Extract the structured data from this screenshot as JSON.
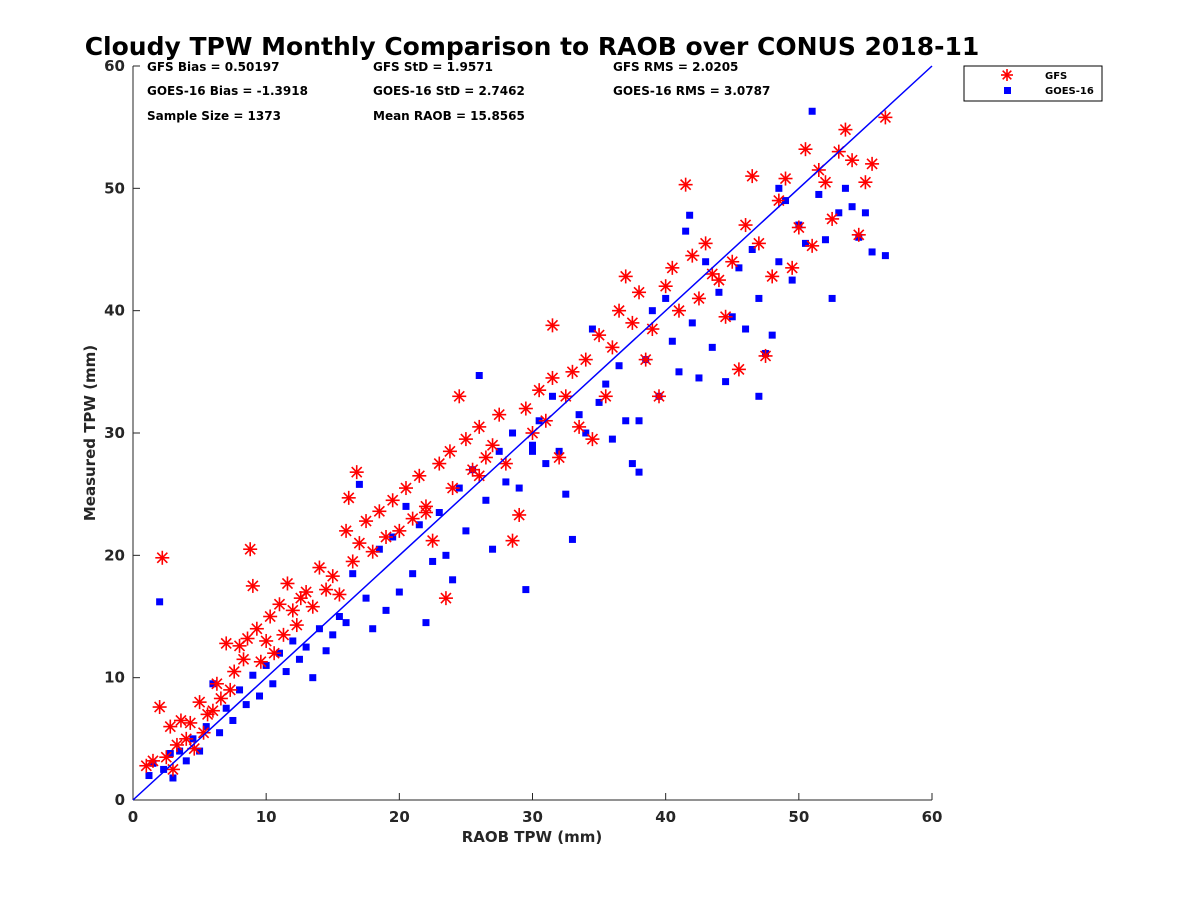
{
  "chart_data": {
    "type": "scatter",
    "title": "Cloudy TPW Monthly Comparison to RAOB over CONUS 2018-11",
    "xlabel": "RAOB TPW (mm)",
    "ylabel": "Measured TPW (mm)",
    "xlim": [
      0,
      60
    ],
    "ylim": [
      0,
      60
    ],
    "x_ticks": [
      "0",
      "10",
      "20",
      "30",
      "40",
      "50",
      "60"
    ],
    "y_ticks": [
      "0",
      "10",
      "20",
      "30",
      "40",
      "50",
      "60"
    ],
    "grid": false,
    "legend_position": "top-right-outside",
    "reference_line": "one-to-one",
    "stats": [
      [
        "GFS Bias = 0.50197",
        "GFS StD = 1.9571",
        "GFS RMS = 2.0205"
      ],
      [
        "GOES-16 Bias = -1.3918",
        "GOES-16 StD = 2.7462",
        "GOES-16 RMS = 3.0787"
      ],
      [
        "Sample Size = 1373",
        "Mean RAOB = 15.8565"
      ]
    ],
    "series": [
      {
        "name": "GFS",
        "marker": "asterisk",
        "color": "#ff0000",
        "points": [
          [
            1.0,
            2.8
          ],
          [
            1.5,
            3.2
          ],
          [
            2.0,
            7.6
          ],
          [
            2.2,
            19.8
          ],
          [
            2.5,
            3.5
          ],
          [
            2.8,
            6.0
          ],
          [
            3.0,
            2.5
          ],
          [
            3.3,
            4.5
          ],
          [
            3.6,
            6.5
          ],
          [
            4.0,
            5.0
          ],
          [
            4.3,
            6.3
          ],
          [
            4.6,
            4.2
          ],
          [
            5.0,
            8.0
          ],
          [
            5.3,
            5.5
          ],
          [
            5.6,
            7.0
          ],
          [
            6.0,
            7.3
          ],
          [
            6.3,
            9.5
          ],
          [
            6.6,
            8.3
          ],
          [
            7.0,
            12.8
          ],
          [
            7.3,
            9.0
          ],
          [
            7.6,
            10.5
          ],
          [
            8.0,
            12.6
          ],
          [
            8.3,
            11.5
          ],
          [
            8.6,
            13.2
          ],
          [
            8.8,
            20.5
          ],
          [
            9.0,
            17.5
          ],
          [
            9.3,
            14.0
          ],
          [
            9.6,
            11.3
          ],
          [
            10.0,
            13.0
          ],
          [
            10.3,
            15.0
          ],
          [
            10.6,
            12.0
          ],
          [
            11.0,
            16.0
          ],
          [
            11.3,
            13.5
          ],
          [
            11.6,
            17.7
          ],
          [
            12.0,
            15.5
          ],
          [
            12.3,
            14.3
          ],
          [
            12.6,
            16.5
          ],
          [
            13.0,
            17.0
          ],
          [
            13.5,
            15.8
          ],
          [
            14.0,
            19.0
          ],
          [
            14.5,
            17.2
          ],
          [
            15.0,
            18.3
          ],
          [
            15.5,
            16.8
          ],
          [
            16.0,
            22.0
          ],
          [
            16.2,
            24.7
          ],
          [
            16.5,
            19.5
          ],
          [
            16.8,
            26.8
          ],
          [
            17.0,
            21.0
          ],
          [
            17.5,
            22.8
          ],
          [
            18.0,
            20.3
          ],
          [
            18.5,
            23.6
          ],
          [
            19.0,
            21.5
          ],
          [
            19.5,
            24.5
          ],
          [
            20.0,
            22.0
          ],
          [
            20.5,
            25.5
          ],
          [
            21.0,
            23.0
          ],
          [
            21.5,
            26.5
          ],
          [
            22.0,
            24.0
          ],
          [
            22.5,
            21.2
          ],
          [
            23.0,
            27.5
          ],
          [
            23.5,
            16.5
          ],
          [
            23.8,
            28.5
          ],
          [
            24.0,
            25.5
          ],
          [
            24.5,
            33.0
          ],
          [
            25.0,
            29.5
          ],
          [
            25.5,
            27.0
          ],
          [
            26.0,
            30.5
          ],
          [
            26.5,
            28.0
          ],
          [
            27.0,
            29.0
          ],
          [
            27.5,
            31.5
          ],
          [
            28.0,
            27.5
          ],
          [
            28.5,
            21.2
          ],
          [
            29.0,
            23.3
          ],
          [
            29.5,
            32.0
          ],
          [
            30.0,
            30.0
          ],
          [
            30.5,
            33.5
          ],
          [
            31.0,
            31.0
          ],
          [
            31.5,
            34.5
          ],
          [
            32.0,
            28.0
          ],
          [
            32.5,
            33.0
          ],
          [
            33.0,
            35.0
          ],
          [
            33.5,
            30.5
          ],
          [
            34.0,
            36.0
          ],
          [
            34.5,
            29.5
          ],
          [
            35.0,
            38.0
          ],
          [
            35.5,
            33.0
          ],
          [
            36.0,
            37.0
          ],
          [
            36.5,
            40.0
          ],
          [
            37.0,
            42.8
          ],
          [
            37.5,
            39.0
          ],
          [
            38.0,
            41.5
          ],
          [
            38.5,
            36.0
          ],
          [
            39.0,
            38.5
          ],
          [
            39.5,
            33.0
          ],
          [
            40.0,
            42.0
          ],
          [
            40.5,
            43.5
          ],
          [
            41.0,
            40.0
          ],
          [
            41.5,
            50.3
          ],
          [
            42.0,
            44.5
          ],
          [
            42.5,
            41.0
          ],
          [
            43.0,
            45.5
          ],
          [
            43.5,
            43.0
          ],
          [
            44.0,
            42.5
          ],
          [
            44.5,
            39.5
          ],
          [
            45.0,
            44.0
          ],
          [
            45.5,
            35.2
          ],
          [
            46.0,
            47.0
          ],
          [
            46.5,
            51.0
          ],
          [
            47.0,
            45.5
          ],
          [
            47.5,
            36.3
          ],
          [
            48.0,
            42.8
          ],
          [
            48.5,
            49.0
          ],
          [
            49.0,
            50.8
          ],
          [
            49.5,
            43.5
          ],
          [
            50.0,
            46.8
          ],
          [
            50.5,
            53.2
          ],
          [
            51.0,
            45.3
          ],
          [
            51.5,
            51.5
          ],
          [
            52.0,
            50.5
          ],
          [
            52.5,
            47.5
          ],
          [
            53.0,
            53.0
          ],
          [
            53.5,
            54.8
          ],
          [
            54.0,
            52.3
          ],
          [
            54.5,
            46.2
          ],
          [
            55.0,
            50.5
          ],
          [
            55.5,
            52.0
          ],
          [
            56.5,
            55.8
          ],
          [
            31.5,
            38.8
          ],
          [
            26.0,
            26.5
          ],
          [
            22.0,
            23.5
          ]
        ]
      },
      {
        "name": "GOES-16",
        "marker": "square",
        "color": "#0000ff",
        "points": [
          [
            1.2,
            2.0
          ],
          [
            1.5,
            3.0
          ],
          [
            2.0,
            16.2
          ],
          [
            2.3,
            2.5
          ],
          [
            2.8,
            3.8
          ],
          [
            3.0,
            1.8
          ],
          [
            3.5,
            4.0
          ],
          [
            4.0,
            3.2
          ],
          [
            4.5,
            5.0
          ],
          [
            5.0,
            4.0
          ],
          [
            5.5,
            6.0
          ],
          [
            6.0,
            9.5
          ],
          [
            6.5,
            5.5
          ],
          [
            7.0,
            7.5
          ],
          [
            7.5,
            6.5
          ],
          [
            8.0,
            9.0
          ],
          [
            8.5,
            7.8
          ],
          [
            9.0,
            10.2
          ],
          [
            9.5,
            8.5
          ],
          [
            10.0,
            11.0
          ],
          [
            10.5,
            9.5
          ],
          [
            11.0,
            12.0
          ],
          [
            11.5,
            10.5
          ],
          [
            12.0,
            13.0
          ],
          [
            12.5,
            11.5
          ],
          [
            13.0,
            12.5
          ],
          [
            13.5,
            10.0
          ],
          [
            14.0,
            14.0
          ],
          [
            14.5,
            12.2
          ],
          [
            15.0,
            13.5
          ],
          [
            15.5,
            15.0
          ],
          [
            16.0,
            14.5
          ],
          [
            16.5,
            18.5
          ],
          [
            17.0,
            25.8
          ],
          [
            17.5,
            16.5
          ],
          [
            18.0,
            14.0
          ],
          [
            18.5,
            20.5
          ],
          [
            19.0,
            15.5
          ],
          [
            19.5,
            21.5
          ],
          [
            20.0,
            17.0
          ],
          [
            20.5,
            24.0
          ],
          [
            21.0,
            18.5
          ],
          [
            21.5,
            22.5
          ],
          [
            22.0,
            14.5
          ],
          [
            22.5,
            19.5
          ],
          [
            23.0,
            23.5
          ],
          [
            23.5,
            20.0
          ],
          [
            24.0,
            18.0
          ],
          [
            24.5,
            25.5
          ],
          [
            25.0,
            22.0
          ],
          [
            25.5,
            27.0
          ],
          [
            26.0,
            34.7
          ],
          [
            26.5,
            24.5
          ],
          [
            27.0,
            20.5
          ],
          [
            27.5,
            28.5
          ],
          [
            28.0,
            26.0
          ],
          [
            28.5,
            30.0
          ],
          [
            29.0,
            25.5
          ],
          [
            29.5,
            17.2
          ],
          [
            30.0,
            29.0
          ],
          [
            30.5,
            31.0
          ],
          [
            31.0,
            27.5
          ],
          [
            31.5,
            33.0
          ],
          [
            32.0,
            28.5
          ],
          [
            32.5,
            25.0
          ],
          [
            33.0,
            21.3
          ],
          [
            33.5,
            31.5
          ],
          [
            34.0,
            30.0
          ],
          [
            34.5,
            38.5
          ],
          [
            35.0,
            32.5
          ],
          [
            35.5,
            34.0
          ],
          [
            36.0,
            29.5
          ],
          [
            36.5,
            35.5
          ],
          [
            37.0,
            31.0
          ],
          [
            37.5,
            27.5
          ],
          [
            38.0,
            26.8
          ],
          [
            38.5,
            36.0
          ],
          [
            39.0,
            40.0
          ],
          [
            39.5,
            33.0
          ],
          [
            40.0,
            41.0
          ],
          [
            40.5,
            37.5
          ],
          [
            41.0,
            35.0
          ],
          [
            41.5,
            46.5
          ],
          [
            42.0,
            39.0
          ],
          [
            42.5,
            34.5
          ],
          [
            43.0,
            44.0
          ],
          [
            43.5,
            37.0
          ],
          [
            44.0,
            41.5
          ],
          [
            44.5,
            34.2
          ],
          [
            45.0,
            39.5
          ],
          [
            45.5,
            43.5
          ],
          [
            46.0,
            38.5
          ],
          [
            46.5,
            45.0
          ],
          [
            47.0,
            41.0
          ],
          [
            47.5,
            36.5
          ],
          [
            48.0,
            38.0
          ],
          [
            48.5,
            44.0
          ],
          [
            49.0,
            49.0
          ],
          [
            49.5,
            42.5
          ],
          [
            50.0,
            47.0
          ],
          [
            50.5,
            45.5
          ],
          [
            51.0,
            56.3
          ],
          [
            51.5,
            49.5
          ],
          [
            52.0,
            45.8
          ],
          [
            52.5,
            41.0
          ],
          [
            53.0,
            48.0
          ],
          [
            53.5,
            50.0
          ],
          [
            54.0,
            48.5
          ],
          [
            54.5,
            46.0
          ],
          [
            55.0,
            48.0
          ],
          [
            55.5,
            44.8
          ],
          [
            56.5,
            44.5
          ],
          [
            41.8,
            47.8
          ],
          [
            48.5,
            50.0
          ],
          [
            47.0,
            33.0
          ],
          [
            38.0,
            31.0
          ],
          [
            30.0,
            28.5
          ]
        ]
      }
    ]
  }
}
